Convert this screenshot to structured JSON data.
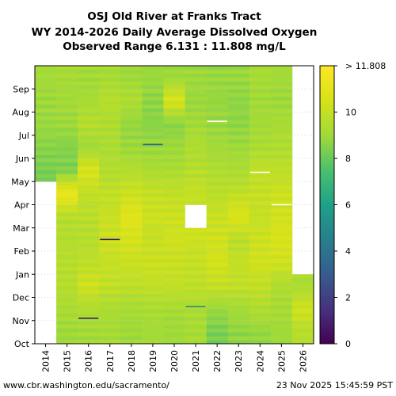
{
  "chart_data": {
    "type": "heatmap",
    "title_lines": [
      "OSJ Old River at Franks Tract",
      "WY 2014-2026 Daily Average Dissolved Oxygen",
      "Observed Range 6.131 : 11.808 mg/L"
    ],
    "x_categories": [
      "2014",
      "2015",
      "2016",
      "2017",
      "2018",
      "2019",
      "2020",
      "2021",
      "2022",
      "2023",
      "2024",
      "2025",
      "2026"
    ],
    "y_tick_labels": [
      "Oct",
      "Nov",
      "Dec",
      "Jan",
      "Feb",
      "Mar",
      "Apr",
      "May",
      "Jun",
      "Jul",
      "Aug",
      "Sep"
    ],
    "value_range": [
      0,
      12
    ],
    "colorbar_ticks": [
      "0",
      "2",
      "4",
      "6",
      "8",
      "10"
    ],
    "colorbar_top_label": "> 11.808",
    "colormap": "viridis",
    "gridlines": "dotted-horizontal",
    "monthly_values_mg_per_l": {
      "2014": [
        null,
        null,
        null,
        null,
        null,
        null,
        null,
        8.3,
        8.6,
        8.9,
        9.0,
        9.1
      ],
      "2015": [
        9.0,
        9.3,
        9.6,
        9.6,
        9.5,
        9.6,
        11.3,
        8.4,
        8.5,
        9.0,
        9.1,
        9.2
      ],
      "2016": [
        9.1,
        9.4,
        10.3,
        9.8,
        9.6,
        9.7,
        9.9,
        10.6,
        9.0,
        9.6,
        9.2,
        9.1
      ],
      "2017": [
        9.2,
        9.3,
        9.9,
        10.0,
        10.2,
        10.1,
        9.9,
        9.5,
        9.3,
        9.4,
        9.6,
        9.2
      ],
      "2018": [
        9.0,
        9.2,
        9.8,
        10.1,
        10.5,
        10.9,
        10.2,
        9.5,
        9.0,
        8.8,
        9.4,
        9.0
      ],
      "2019": [
        9.1,
        9.3,
        9.9,
        10.2,
        10.0,
        10.2,
        10.0,
        9.3,
        8.9,
        8.6,
        8.7,
        8.9
      ],
      "2020": [
        9.0,
        9.2,
        9.9,
        10.1,
        10.3,
        10.2,
        9.9,
        9.3,
        9.0,
        8.6,
        10.6,
        9.0
      ],
      "2021": [
        9.2,
        9.3,
        9.8,
        10.0,
        10.2,
        null,
        10.0,
        9.6,
        9.4,
        9.1,
        8.9,
        9.0
      ],
      "2022": [
        8.3,
        8.9,
        10.0,
        10.4,
        10.3,
        10.1,
        9.7,
        9.4,
        9.1,
        8.9,
        8.8,
        8.9
      ],
      "2023": [
        8.7,
        9.1,
        9.9,
        10.0,
        9.7,
        10.6,
        9.9,
        9.3,
        9.0,
        8.7,
        8.7,
        8.9
      ],
      "2024": [
        8.8,
        9.4,
        9.9,
        10.3,
        10.2,
        10.0,
        10.0,
        9.9,
        9.3,
        9.1,
        9.1,
        9.2
      ],
      "2025": [
        9.0,
        9.2,
        9.4,
        10.3,
        10.6,
        10.3,
        10.2,
        9.8,
        9.4,
        9.2,
        9.0,
        9.1
      ],
      "2026": [
        9.6,
        10.3,
        9.3,
        null,
        null,
        null,
        null,
        null,
        null,
        null,
        null,
        null
      ]
    }
  },
  "footer": {
    "source": "www.cbr.washington.edu/sacramento/",
    "timestamp": "23 Nov 2025 15:45:59 PST"
  }
}
